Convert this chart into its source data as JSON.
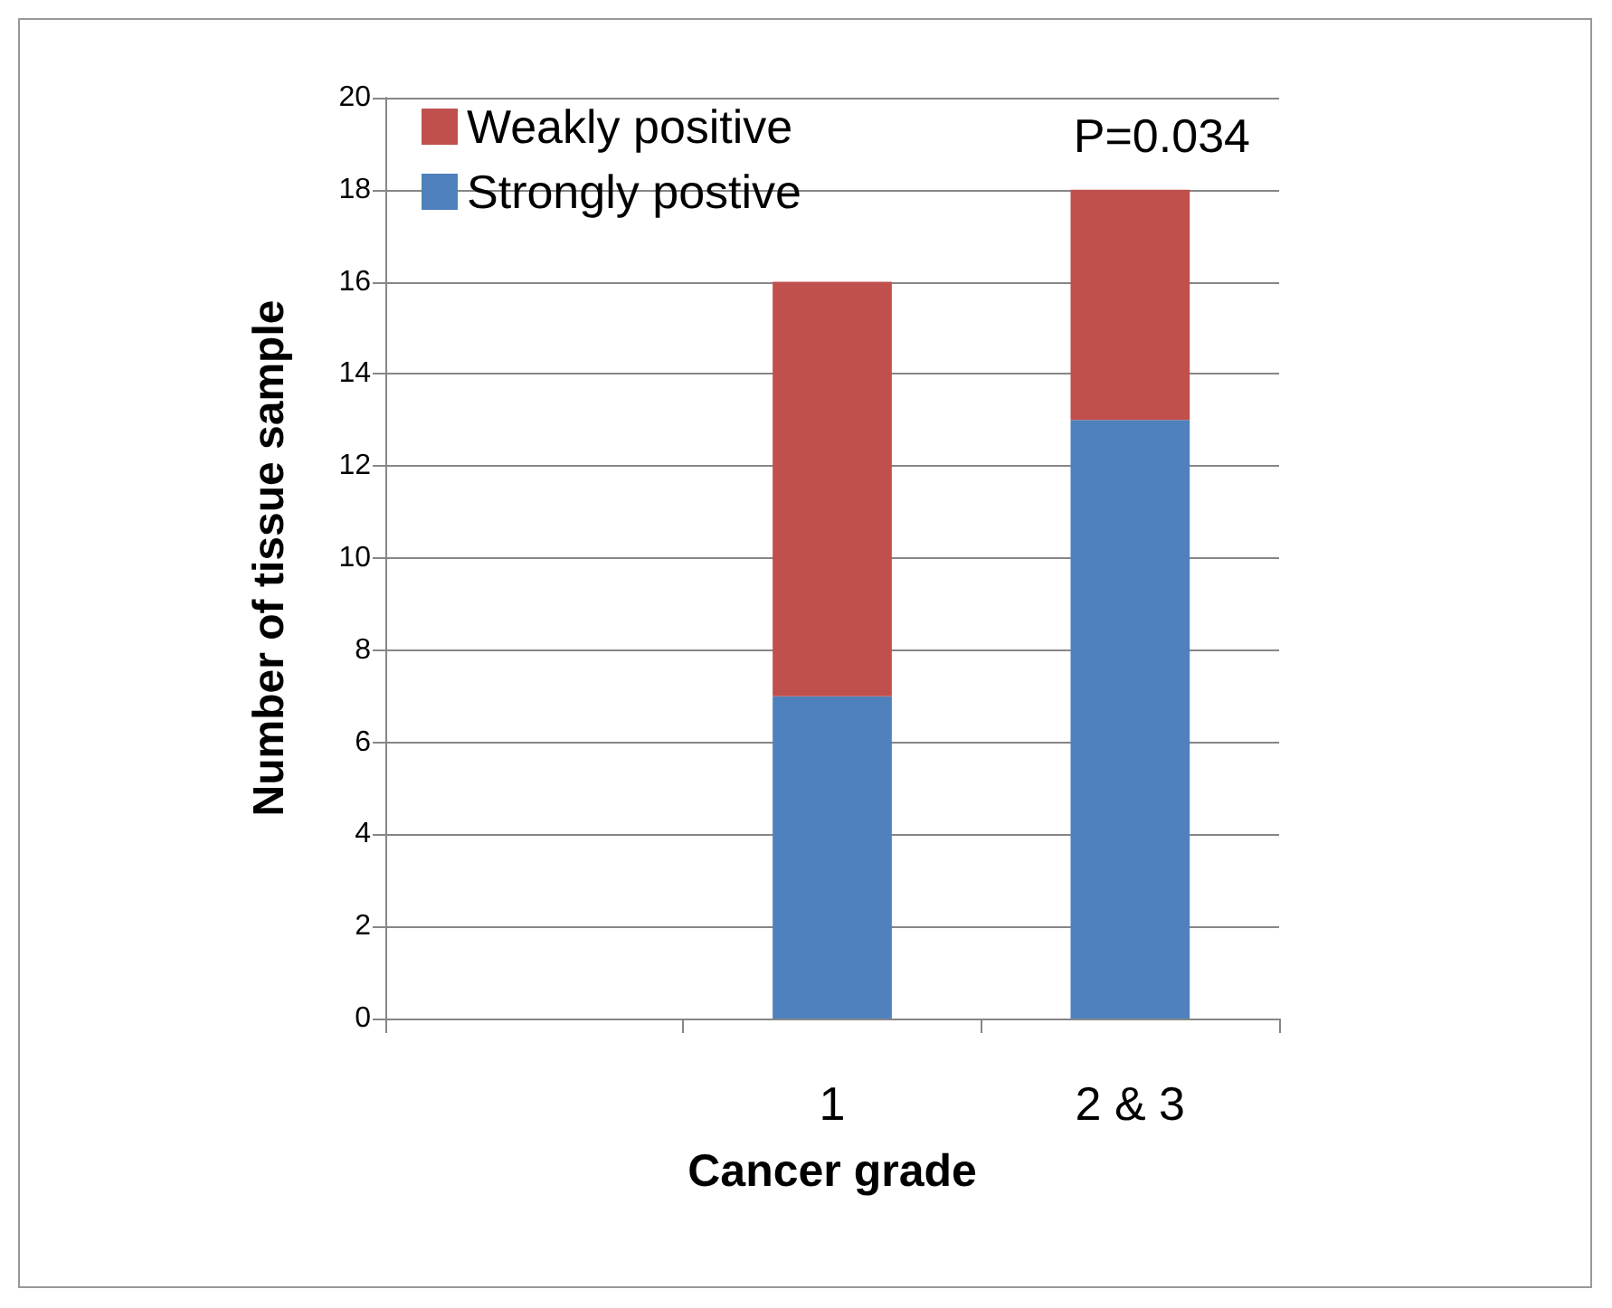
{
  "chart_data": {
    "type": "bar",
    "stacked": true,
    "xlabel": "Cancer grade",
    "ylabel": "Number of tissue sample",
    "categories": [
      null,
      "1",
      "2 & 3"
    ],
    "series": [
      {
        "name": "Strongly postive",
        "color": "#4f81bd",
        "values": [
          null,
          7,
          13
        ]
      },
      {
        "name": "Weakly positive",
        "color": "#c0504d",
        "values": [
          null,
          9,
          5
        ]
      }
    ],
    "ylim": [
      0,
      20
    ],
    "yticks": [
      0,
      2,
      4,
      6,
      8,
      10,
      12,
      14,
      16,
      18,
      20
    ],
    "grid": "y",
    "legend": "top left",
    "annotations": [
      "P=0.034"
    ]
  }
}
